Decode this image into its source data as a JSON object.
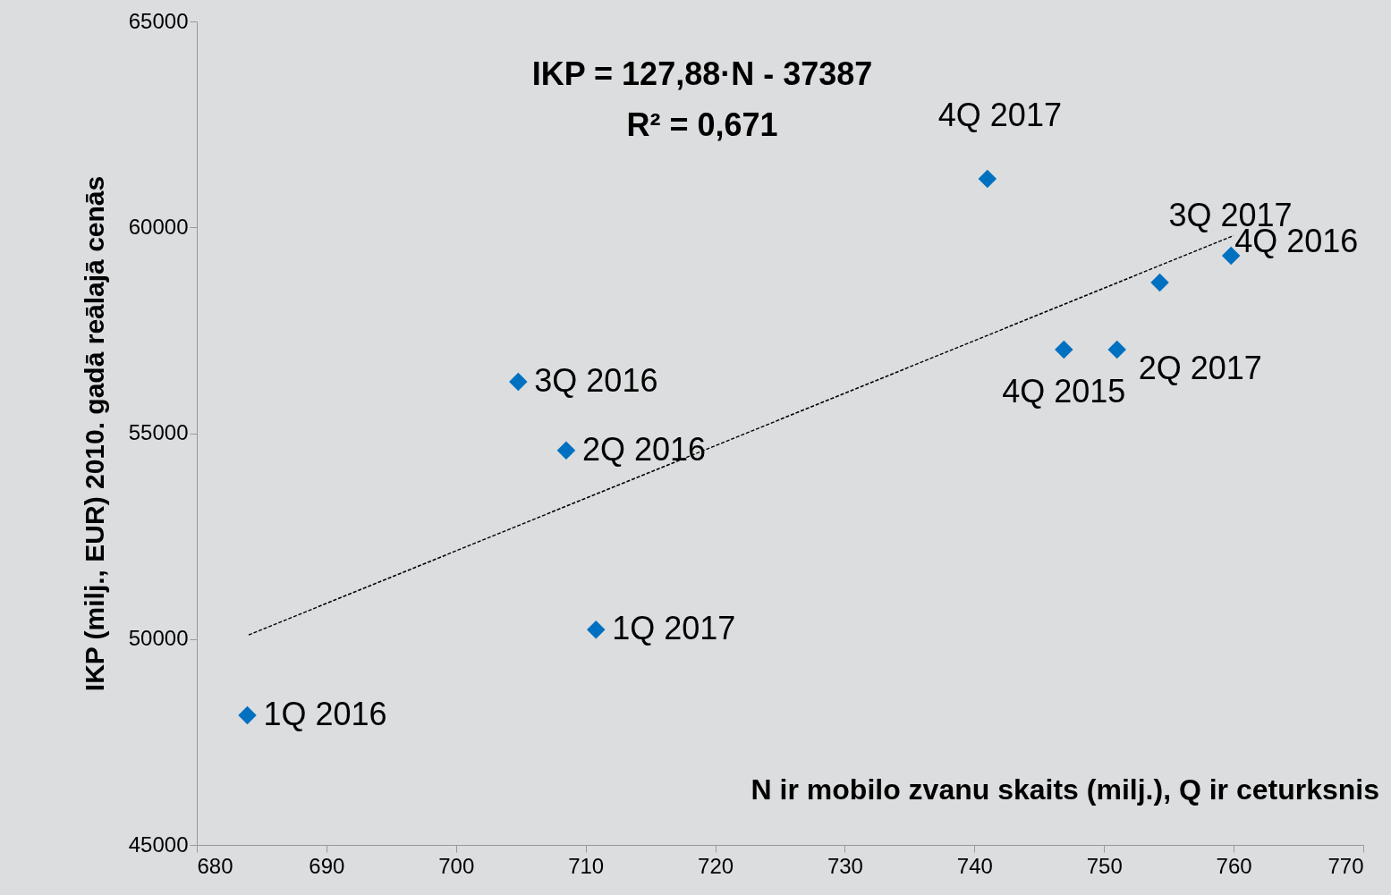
{
  "chart_data": {
    "type": "scatter",
    "xlabel": "N ir mobilo zvanu skaits (milj.), Q ir ceturksnis",
    "ylabel": "IKP  (milj., EUR) 2010. gadā reālajā cenās",
    "annotations": [
      "IKP = 127,88·N - 37387",
      "R² = 0,671"
    ],
    "series": [
      {
        "color": "#0070c0",
        "marker": "diamond",
        "x": [
          683.9,
          704.8,
          708.5,
          710.8,
          741.0,
          746.9,
          751.0,
          754.3,
          759.8
        ],
        "values": [
          48150,
          56250,
          54580,
          50230,
          61180,
          57030,
          57030,
          58660,
          59310
        ],
        "value_labels": [
          "1Q 2016",
          "3Q 2016",
          "2Q 2016",
          "1Q 2017",
          "4Q 2017",
          "4Q 2015",
          "2Q 2017",
          "3Q 2017",
          "4Q 2016"
        ]
      },
      {
        "type": "line",
        "color": "#000000",
        "line_style": "dashed",
        "x": [
          684,
          760
        ],
        "values": [
          50100,
          59800
        ]
      }
    ],
    "xlim": [
      680,
      770
    ],
    "xticks": [
      680,
      690,
      700,
      710,
      720,
      730,
      740,
      750,
      760,
      770
    ],
    "ylim": [
      45000,
      65000
    ],
    "yticks": [
      45000,
      50000,
      55000,
      60000,
      65000
    ]
  }
}
